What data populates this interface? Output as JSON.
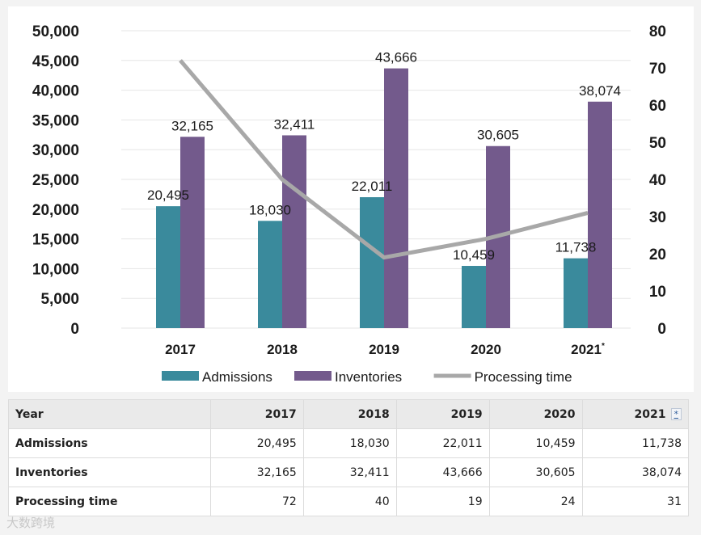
{
  "chart_data": {
    "type": "bar",
    "categories": [
      "2017",
      "2018",
      "2019",
      "2020",
      "2021"
    ],
    "category_markers": [
      "",
      "",
      "",
      "",
      "*"
    ],
    "series": [
      {
        "name": "Admissions",
        "kind": "bar",
        "axis": "left",
        "color": "#3a8a9c",
        "values": [
          20495,
          18030,
          22011,
          10459,
          11738
        ],
        "labels": [
          "20,495",
          "18,030",
          "22,011",
          "10,459",
          "11,738"
        ]
      },
      {
        "name": "Inventories",
        "kind": "bar",
        "axis": "left",
        "color": "#735a8c",
        "values": [
          32165,
          32411,
          43666,
          30605,
          38074
        ],
        "labels": [
          "32,165",
          "32,411",
          "43,666",
          "30,605",
          "38,074"
        ]
      },
      {
        "name": "Processing time",
        "kind": "line",
        "axis": "right",
        "color": "#a8a8a8",
        "values": [
          72,
          40,
          19,
          24,
          31
        ]
      }
    ],
    "y_left": {
      "min": 0,
      "max": 50000,
      "ticks": [
        "0",
        "5,000",
        "10,000",
        "15,000",
        "20,000",
        "25,000",
        "30,000",
        "35,000",
        "40,000",
        "45,000",
        "50,000"
      ]
    },
    "y_right": {
      "min": 0,
      "max": 80,
      "ticks": [
        "0",
        "10",
        "20",
        "30",
        "40",
        "50",
        "60",
        "70",
        "80"
      ]
    },
    "grid": true,
    "legend": "bottom"
  },
  "table": {
    "header_label": "Year",
    "years": [
      "2017",
      "2018",
      "2019",
      "2020",
      "2021"
    ],
    "footnote_marker": "*",
    "rows": [
      {
        "label": "Admissions",
        "values": [
          "20,495",
          "18,030",
          "22,011",
          "10,459",
          "11,738"
        ]
      },
      {
        "label": "Inventories",
        "values": [
          "32,165",
          "32,411",
          "43,666",
          "30,605",
          "38,074"
        ]
      },
      {
        "label": "Processing time",
        "values": [
          "72",
          "40",
          "19",
          "24",
          "31"
        ]
      }
    ]
  },
  "watermark": "大数跨境"
}
